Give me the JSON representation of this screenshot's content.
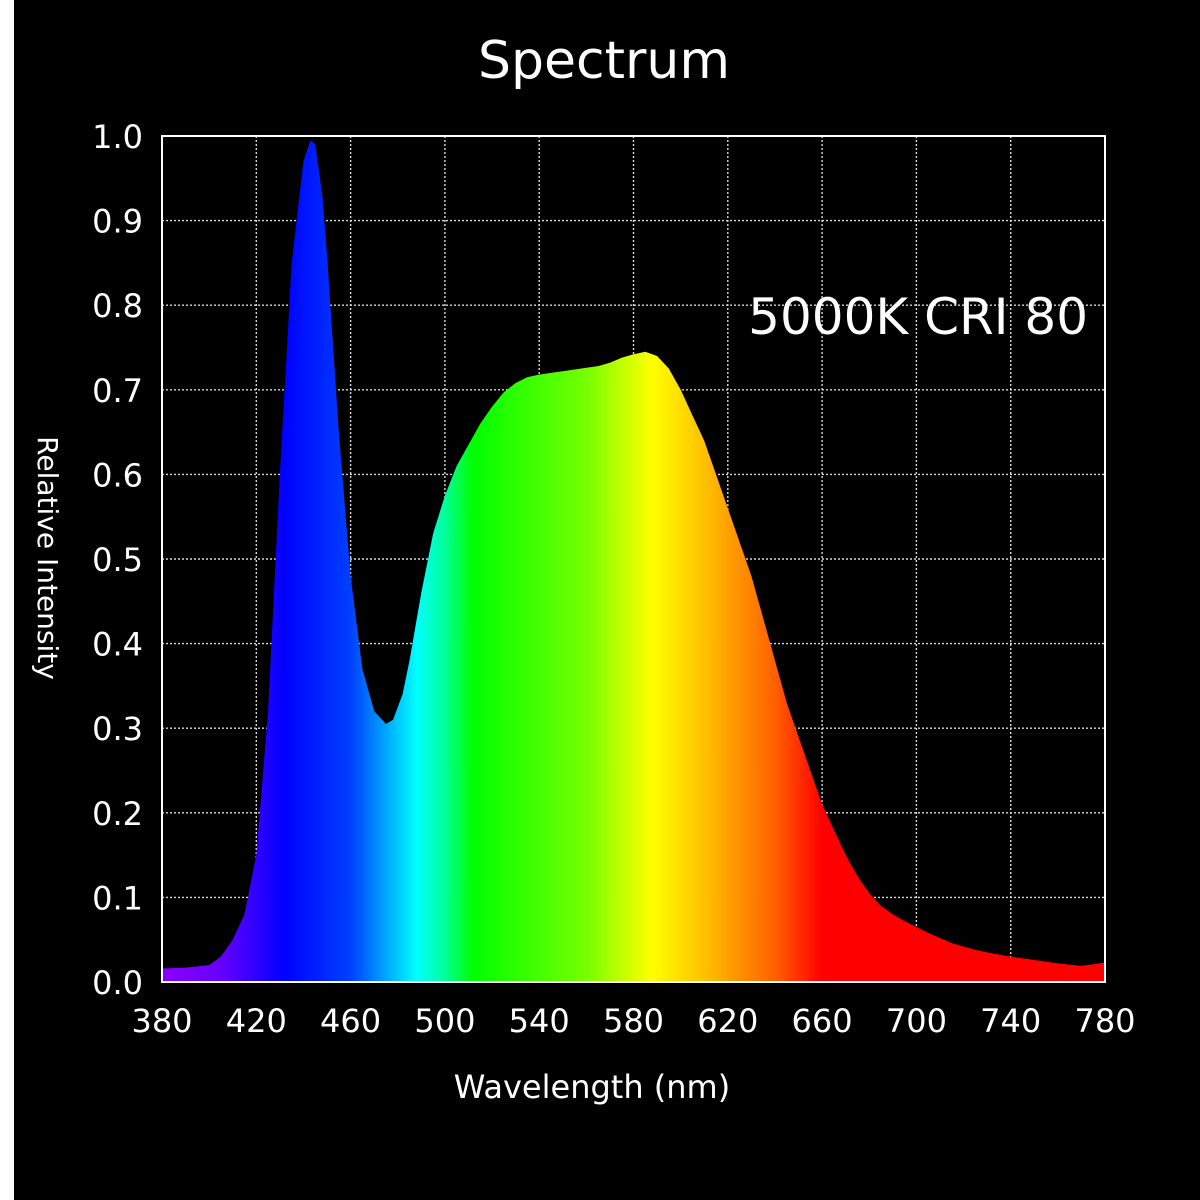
{
  "chart_data": {
    "type": "area",
    "title": "Spectrum",
    "annotation": "5000K CRI 80",
    "xlabel": "Wavelength (nm)",
    "ylabel": "Relative Intensity",
    "xlim": [
      380,
      780
    ],
    "ylim": [
      0.0,
      1.0
    ],
    "x_ticks": [
      380,
      420,
      460,
      500,
      540,
      580,
      620,
      660,
      700,
      740,
      780
    ],
    "x_tick_labels": [
      "380",
      "420",
      "460",
      "500",
      "540",
      "580",
      "620",
      "660",
      "700",
      "740",
      "780"
    ],
    "y_ticks": [
      0.0,
      0.1,
      0.2,
      0.3,
      0.4,
      0.5,
      0.6,
      0.7,
      0.8,
      0.9,
      1.0
    ],
    "y_tick_labels": [
      "0.0",
      "0.1",
      "0.2",
      "0.3",
      "0.4",
      "0.5",
      "0.6",
      "0.7",
      "0.8",
      "0.9",
      "1.0"
    ],
    "grid": true,
    "series": [
      {
        "x": [
          380,
          390,
          400,
          405,
          410,
          415,
          420,
          425,
          430,
          435,
          440,
          443,
          445,
          448,
          450,
          455,
          460,
          465,
          470,
          475,
          478,
          482,
          485,
          490,
          495,
          500,
          505,
          510,
          515,
          520,
          525,
          530,
          535,
          540,
          545,
          550,
          555,
          560,
          565,
          570,
          575,
          580,
          585,
          590,
          595,
          600,
          605,
          610,
          615,
          620,
          625,
          630,
          635,
          640,
          645,
          650,
          655,
          660,
          665,
          670,
          675,
          680,
          685,
          690,
          695,
          700,
          705,
          710,
          715,
          720,
          725,
          730,
          740,
          750,
          760,
          770,
          775,
          780
        ],
        "y": [
          0.016,
          0.017,
          0.02,
          0.03,
          0.05,
          0.08,
          0.15,
          0.32,
          0.6,
          0.85,
          0.97,
          0.995,
          0.99,
          0.93,
          0.86,
          0.65,
          0.48,
          0.37,
          0.32,
          0.305,
          0.31,
          0.34,
          0.38,
          0.46,
          0.53,
          0.575,
          0.61,
          0.635,
          0.66,
          0.68,
          0.697,
          0.708,
          0.715,
          0.718,
          0.72,
          0.722,
          0.724,
          0.726,
          0.728,
          0.732,
          0.738,
          0.742,
          0.745,
          0.74,
          0.725,
          0.7,
          0.67,
          0.64,
          0.6,
          0.56,
          0.52,
          0.48,
          0.43,
          0.38,
          0.33,
          0.29,
          0.25,
          0.21,
          0.18,
          0.15,
          0.125,
          0.105,
          0.09,
          0.08,
          0.072,
          0.065,
          0.058,
          0.052,
          0.046,
          0.042,
          0.038,
          0.035,
          0.03,
          0.026,
          0.022,
          0.019,
          0.021,
          0.023
        ]
      }
    ]
  }
}
